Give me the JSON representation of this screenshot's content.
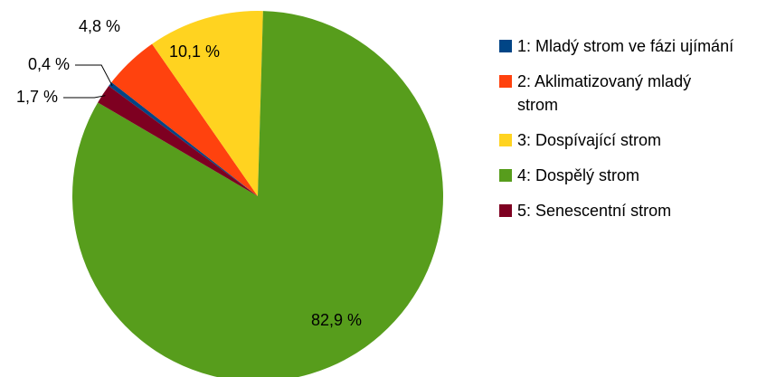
{
  "chart_data": {
    "type": "pie",
    "categories": [
      "1: Mladý strom ve fázi ujímání",
      "2: Aklimatizovaný mladý strom",
      "3: Dospívající strom",
      "4: Dospělý strom",
      "5: Senescentní strom"
    ],
    "values": [
      0.4,
      4.8,
      10.1,
      82.9,
      1.7
    ],
    "value_labels": [
      "0,4 %",
      "4,8 %",
      "10,1 %",
      "82,9 %",
      "1,7 %"
    ],
    "colors": [
      "#004586",
      "#ff420e",
      "#ffd320",
      "#579d1c",
      "#7e0021"
    ],
    "legend": "right"
  }
}
